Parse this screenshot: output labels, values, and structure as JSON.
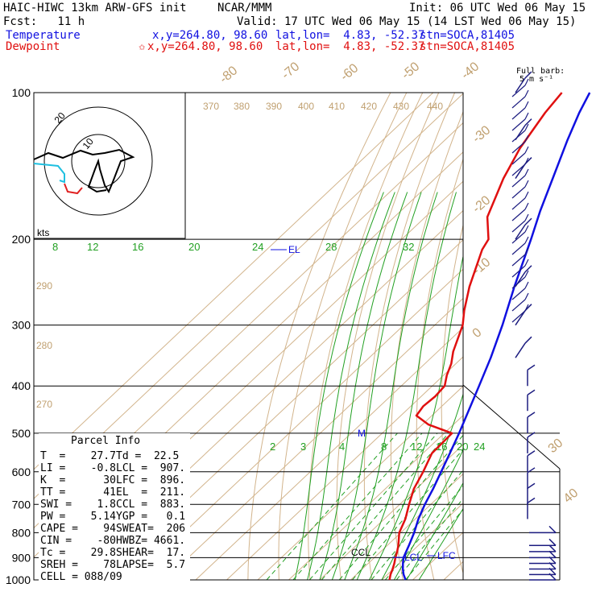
{
  "header": {
    "model": "HAIC-HIWC 13km ARW-GFS init",
    "org": "NCAR/MMM",
    "init": "Init: 06 UTC Wed 06 May 15",
    "fcst": "Fcst:   11 h",
    "valid": "Valid: 17 UTC Wed 06 May 15 (14 LST Wed 06 May 15)",
    "temp_row": {
      "label": "Temperature",
      "xy": "x,y=264.80, 98.60",
      "latlon": "lat,lon=  4.83, -52.37",
      "stn": "stn=SOCA,81405"
    },
    "dew_row": {
      "label": "Dewpoint",
      "star": "✩",
      "xy": "x,y=264.80, 98.60",
      "latlon": "lat,lon=  4.83, -52.37",
      "stn": "stn=SOCA,81405"
    }
  },
  "barb_title": "Full barb:",
  "barb_units": "5 m s⁻¹",
  "hodograph": {
    "units": "kts",
    "ring_labels": [
      "20",
      "10"
    ],
    "colors": {
      "black": "#000000",
      "cyan": "#20c0e0",
      "red": "#e02020"
    }
  },
  "chart_data": {
    "type": "line",
    "title": "",
    "y_axis": {
      "label": "",
      "scale": "log",
      "ticks": [
        100,
        200,
        300,
        400,
        500,
        600,
        700,
        800,
        900,
        1000
      ]
    },
    "isotherm_labels": [
      "-80",
      "-70",
      "-60",
      "-50",
      "-40",
      "-30",
      "-20",
      "-10",
      "0",
      "10",
      "20",
      "30",
      "40"
    ],
    "theta_labels": [
      "370",
      "380",
      "390",
      "400",
      "410",
      "420",
      "430",
      "440"
    ],
    "theta_left_labels": [
      "290",
      "280",
      "270"
    ],
    "theta_e_labels": [
      "8",
      "12",
      "16",
      "20",
      "24",
      "28",
      "32"
    ],
    "mixing_ratio_labels": [
      "2",
      "3",
      "4",
      "6",
      "8",
      "12",
      "16",
      "20",
      "24"
    ],
    "annotations": [
      "EL",
      "M",
      "CCL",
      "LCL",
      "LFC"
    ],
    "series": [
      {
        "name": "Temperature",
        "color": "#1010e0",
        "points": [
          [
            1000,
            27.7
          ],
          [
            975,
            25.2
          ],
          [
            950,
            23.1
          ],
          [
            925,
            21.2
          ],
          [
            900,
            19.4
          ],
          [
            875,
            18.2
          ],
          [
            850,
            17.0
          ],
          [
            800,
            14.3
          ],
          [
            750,
            11.0
          ],
          [
            700,
            8.1
          ],
          [
            650,
            5.4
          ],
          [
            600,
            2.2
          ],
          [
            550,
            -1.3
          ],
          [
            500,
            -5.2
          ],
          [
            450,
            -9.8
          ],
          [
            400,
            -14.9
          ],
          [
            350,
            -20.8
          ],
          [
            300,
            -28.2
          ],
          [
            250,
            -37.5
          ],
          [
            200,
            -48.3
          ],
          [
            175,
            -55.0
          ],
          [
            150,
            -62.1
          ],
          [
            125,
            -70.5
          ],
          [
            110,
            -76.0
          ],
          [
            100,
            -79.5
          ]
        ]
      },
      {
        "name": "Dewpoint",
        "color": "#e01010",
        "points": [
          [
            1000,
            22.5
          ],
          [
            975,
            21.0
          ],
          [
            950,
            19.8
          ],
          [
            925,
            18.4
          ],
          [
            900,
            16.8
          ],
          [
            875,
            15.3
          ],
          [
            850,
            13.6
          ],
          [
            800,
            9.5
          ],
          [
            750,
            6.8
          ],
          [
            700,
            3.0
          ],
          [
            650,
            -0.8
          ],
          [
            600,
            -3.6
          ],
          [
            550,
            -7.1
          ],
          [
            500,
            -7.5
          ],
          [
            480,
            -18.0
          ],
          [
            460,
            -25.0
          ],
          [
            440,
            -26.0
          ],
          [
            420,
            -25.5
          ],
          [
            400,
            -26.0
          ],
          [
            380,
            -29.0
          ],
          [
            360,
            -31.5
          ],
          [
            340,
            -35.0
          ],
          [
            300,
            -41.0
          ],
          [
            280,
            -45.5
          ],
          [
            250,
            -52.0
          ],
          [
            210,
            -60.5
          ],
          [
            200,
            -62.0
          ],
          [
            180,
            -70.0
          ],
          [
            150,
            -78.0
          ],
          [
            130,
            -83.0
          ],
          [
            110,
            -87.0
          ],
          [
            100,
            -88.5
          ]
        ]
      }
    ],
    "wind_barbs_pressure": [
      1000,
      975,
      950,
      925,
      900,
      875,
      850,
      800,
      750,
      700,
      650,
      600,
      550,
      500,
      450,
      400,
      350,
      300,
      250,
      200,
      150,
      125,
      100
    ]
  },
  "parcel_info": {
    "title": "Parcel Info",
    "rows": [
      [
        "T  =    27.7",
        "Td =  22.5"
      ],
      [
        "LI =    -0.8",
        "LCL =  907."
      ],
      [
        "K  =      30",
        "LFC =  896."
      ],
      [
        "TT =      41",
        "EL  =  211."
      ],
      [
        "SWI =    1.8",
        "CCL =  883."
      ],
      [
        "PW =    5.14",
        "YGP =   0.1"
      ],
      [
        "CAPE =    94",
        "SWEAT=  206"
      ],
      [
        "CIN =    -80",
        "HWBZ= 4661."
      ],
      [
        "Tc =    29.8",
        "SHEAR=  17."
      ],
      [
        "SREH =    78",
        "LAPSE=  5.7"
      ],
      [
        "CELL = 088/09",
        ""
      ]
    ]
  }
}
